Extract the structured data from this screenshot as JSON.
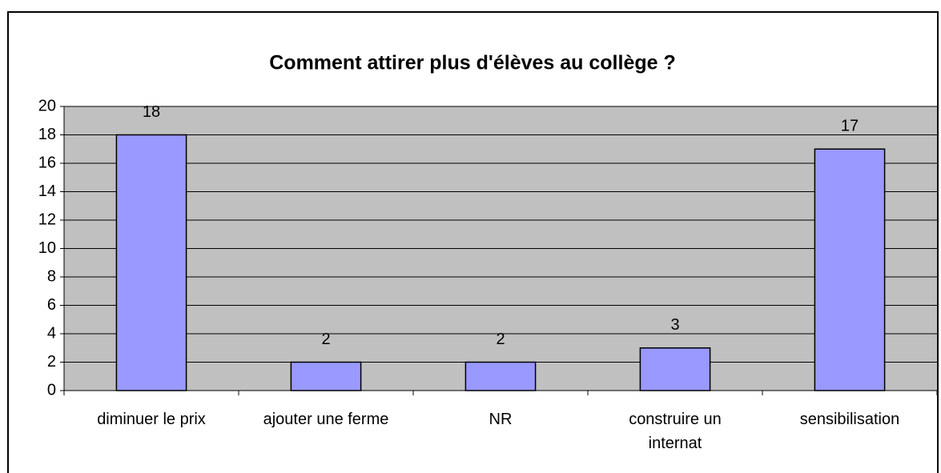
{
  "chart_data": {
    "type": "bar",
    "title": "Comment attirer plus d'élèves au collège ?",
    "categories": [
      "diminuer le prix",
      "ajouter une ferme",
      "NR",
      "construire un internat",
      "sensibilisation"
    ],
    "values": [
      18,
      2,
      2,
      3,
      17
    ],
    "color": "#9999ff",
    "ylim": [
      0,
      20
    ],
    "yticks": [
      0,
      2,
      4,
      6,
      8,
      10,
      12,
      14,
      16,
      18,
      20
    ],
    "grid": true
  }
}
